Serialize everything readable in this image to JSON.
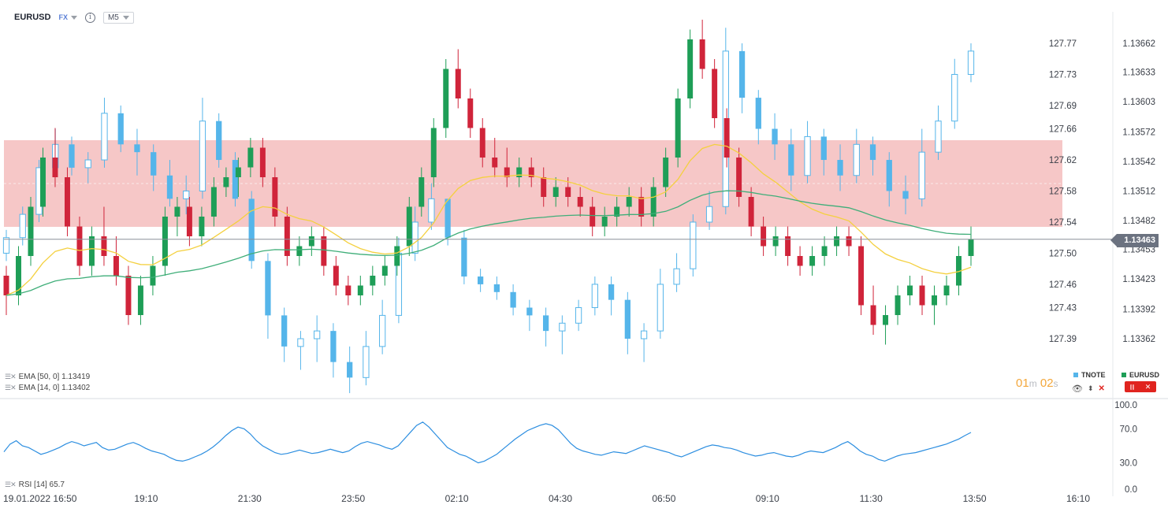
{
  "header": {
    "symbol": "EURUSD",
    "market": "FX",
    "info": "i",
    "timeframe": "M5"
  },
  "indicators": {
    "ema50": "EMA [50, 0] 1.13419",
    "ema14": "EMA [14, 0] 1.13402",
    "rsi": "RSI [14] 65.7"
  },
  "timer": {
    "min": "01",
    "min_unit": "m",
    "sec": "02",
    "sec_unit": "s"
  },
  "legend": {
    "tnote": "TNOTE",
    "eurusd": "EURUSD"
  },
  "current_price": "1.13463",
  "colors": {
    "bull": "#1e9e57",
    "bear": "#d0243a",
    "tnote": "#55b5ea",
    "ema50": "#3fae79",
    "ema14": "#f4d03f",
    "zone": "#f4b9b9",
    "rsi": "#2c8ee0"
  },
  "chart_data": [
    {
      "type": "candlestick",
      "series": [
        {
          "name": "EURUSD",
          "axis": "right"
        },
        {
          "name": "TNOTE",
          "axis": "left-inner"
        },
        {
          "name": "EMA [50, 0]",
          "last": 1.13419
        },
        {
          "name": "EMA [14, 0]",
          "last": 1.13402
        }
      ],
      "x_ticks": [
        "19.01.2022 16:50",
        "19:10",
        "21:30",
        "23:50",
        "02:10",
        "04:30",
        "06:50",
        "09:10",
        "11:30",
        "13:50",
        "16:10"
      ],
      "y_ticks_eurusd": [
        1.13662,
        1.13633,
        1.13603,
        1.13572,
        1.13542,
        1.13512,
        1.13482,
        1.13453,
        1.13423,
        1.13392,
        1.13362
      ],
      "y_ticks_tnote": [
        127.77,
        127.73,
        127.69,
        127.66,
        127.62,
        127.58,
        127.54,
        127.5,
        127.46,
        127.43,
        127.39
      ],
      "eurusd_ohlc": [
        [
          1.13426,
          1.13436,
          1.13386,
          1.13406
        ],
        [
          1.13406,
          1.13456,
          1.13396,
          1.13446
        ],
        [
          1.13446,
          1.13506,
          1.13436,
          1.13496
        ],
        [
          1.13496,
          1.13556,
          1.13486,
          1.13546
        ],
        [
          1.13546,
          1.13576,
          1.13516,
          1.13526
        ],
        [
          1.13526,
          1.13536,
          1.13466,
          1.13476
        ],
        [
          1.13476,
          1.13486,
          1.13426,
          1.13436
        ],
        [
          1.13436,
          1.13476,
          1.13426,
          1.13466
        ],
        [
          1.13466,
          1.13496,
          1.13436,
          1.13446
        ],
        [
          1.13446,
          1.13466,
          1.13416,
          1.13426
        ],
        [
          1.13426,
          1.13436,
          1.13376,
          1.13386
        ],
        [
          1.13386,
          1.13426,
          1.13376,
          1.13416
        ],
        [
          1.13416,
          1.13446,
          1.13406,
          1.13436
        ],
        [
          1.13436,
          1.13496,
          1.13426,
          1.13486
        ],
        [
          1.13486,
          1.13506,
          1.13466,
          1.13496
        ],
        [
          1.13496,
          1.13506,
          1.13456,
          1.13466
        ],
        [
          1.13466,
          1.13496,
          1.13456,
          1.13486
        ],
        [
          1.13486,
          1.13526,
          1.13476,
          1.13516
        ],
        [
          1.13516,
          1.13536,
          1.13506,
          1.13526
        ],
        [
          1.13526,
          1.13546,
          1.13506,
          1.13536
        ],
        [
          1.13536,
          1.13566,
          1.13526,
          1.13556
        ],
        [
          1.13556,
          1.13566,
          1.13516,
          1.13526
        ],
        [
          1.13526,
          1.13536,
          1.13476,
          1.13486
        ],
        [
          1.13486,
          1.13496,
          1.13436,
          1.13446
        ],
        [
          1.13446,
          1.13466,
          1.13436,
          1.13456
        ],
        [
          1.13456,
          1.13476,
          1.13446,
          1.13466
        ],
        [
          1.13466,
          1.13476,
          1.13426,
          1.13436
        ],
        [
          1.13436,
          1.13446,
          1.13406,
          1.13416
        ],
        [
          1.13416,
          1.13426,
          1.13396,
          1.13406
        ],
        [
          1.13406,
          1.13426,
          1.13396,
          1.13416
        ],
        [
          1.13416,
          1.13436,
          1.13406,
          1.13426
        ],
        [
          1.13426,
          1.13446,
          1.13416,
          1.13436
        ],
        [
          1.13436,
          1.13466,
          1.13426,
          1.13456
        ],
        [
          1.13456,
          1.13506,
          1.13446,
          1.13496
        ],
        [
          1.13496,
          1.13536,
          1.13486,
          1.13526
        ],
        [
          1.13526,
          1.13586,
          1.13516,
          1.13576
        ],
        [
          1.13576,
          1.13646,
          1.13566,
          1.13636
        ],
        [
          1.13636,
          1.13656,
          1.13596,
          1.13606
        ],
        [
          1.13606,
          1.13616,
          1.13566,
          1.13576
        ],
        [
          1.13576,
          1.13586,
          1.13536,
          1.13546
        ],
        [
          1.13546,
          1.13566,
          1.13526,
          1.13536
        ],
        [
          1.13536,
          1.13556,
          1.13516,
          1.13526
        ],
        [
          1.13526,
          1.13546,
          1.13516,
          1.13536
        ],
        [
          1.13536,
          1.13546,
          1.13516,
          1.13526
        ],
        [
          1.13526,
          1.13536,
          1.13496,
          1.13506
        ],
        [
          1.13506,
          1.13526,
          1.13496,
          1.13516
        ],
        [
          1.13516,
          1.13526,
          1.13496,
          1.13506
        ],
        [
          1.13506,
          1.13516,
          1.13486,
          1.13496
        ],
        [
          1.13496,
          1.13506,
          1.13466,
          1.13476
        ],
        [
          1.13476,
          1.13496,
          1.13466,
          1.13486
        ],
        [
          1.13486,
          1.13506,
          1.13476,
          1.13496
        ],
        [
          1.13496,
          1.13516,
          1.13486,
          1.13506
        ],
        [
          1.13506,
          1.13516,
          1.13476,
          1.13486
        ],
        [
          1.13486,
          1.13526,
          1.13476,
          1.13516
        ],
        [
          1.13516,
          1.13556,
          1.13506,
          1.13546
        ],
        [
          1.13546,
          1.13616,
          1.13536,
          1.13606
        ],
        [
          1.13606,
          1.13676,
          1.13596,
          1.13666
        ],
        [
          1.13666,
          1.13686,
          1.13626,
          1.13636
        ],
        [
          1.13636,
          1.13646,
          1.13576,
          1.13586
        ],
        [
          1.13586,
          1.13596,
          1.13536,
          1.13546
        ],
        [
          1.13546,
          1.13556,
          1.13496,
          1.13506
        ],
        [
          1.13506,
          1.13516,
          1.13466,
          1.13476
        ],
        [
          1.13476,
          1.13486,
          1.13446,
          1.13456
        ],
        [
          1.13456,
          1.13476,
          1.13446,
          1.13466
        ],
        [
          1.13466,
          1.13476,
          1.13436,
          1.13446
        ],
        [
          1.13446,
          1.13456,
          1.13426,
          1.13436
        ],
        [
          1.13436,
          1.13456,
          1.13426,
          1.13446
        ],
        [
          1.13446,
          1.13466,
          1.13436,
          1.13456
        ],
        [
          1.13456,
          1.13476,
          1.13446,
          1.13466
        ],
        [
          1.13466,
          1.13476,
          1.13446,
          1.13456
        ],
        [
          1.13456,
          1.13466,
          1.13386,
          1.13396
        ],
        [
          1.13396,
          1.13416,
          1.13366,
          1.13376
        ],
        [
          1.13376,
          1.13396,
          1.13356,
          1.13386
        ],
        [
          1.13386,
          1.13416,
          1.13376,
          1.13406
        ],
        [
          1.13406,
          1.13426,
          1.13396,
          1.13416
        ],
        [
          1.13416,
          1.13426,
          1.13386,
          1.13396
        ],
        [
          1.13396,
          1.13416,
          1.13376,
          1.13406
        ],
        [
          1.13406,
          1.13426,
          1.13396,
          1.13416
        ],
        [
          1.13416,
          1.13456,
          1.13406,
          1.13446
        ],
        [
          1.13446,
          1.13476,
          1.13436,
          1.13463
        ]
      ],
      "tnote_ohlc": [
        [
          127.5,
          127.53,
          127.49,
          127.52
        ],
        [
          127.52,
          127.56,
          127.51,
          127.55
        ],
        [
          127.55,
          127.62,
          127.54,
          127.61
        ],
        [
          127.61,
          127.66,
          127.6,
          127.64
        ],
        [
          127.64,
          127.65,
          127.6,
          127.61
        ],
        [
          127.61,
          127.63,
          127.59,
          127.62
        ],
        [
          127.62,
          127.7,
          127.61,
          127.68
        ],
        [
          127.68,
          127.69,
          127.63,
          127.64
        ],
        [
          127.64,
          127.66,
          127.6,
          127.63
        ],
        [
          127.63,
          127.64,
          127.58,
          127.6
        ],
        [
          127.6,
          127.62,
          127.56,
          127.57
        ],
        [
          127.57,
          127.6,
          127.55,
          127.58
        ],
        [
          127.58,
          127.7,
          127.57,
          127.67
        ],
        [
          127.67,
          127.68,
          127.61,
          127.62
        ],
        [
          127.62,
          127.63,
          127.56,
          127.57
        ],
        [
          127.57,
          127.58,
          127.48,
          127.49
        ],
        [
          127.49,
          127.5,
          127.39,
          127.42
        ],
        [
          127.42,
          127.43,
          127.36,
          127.38
        ],
        [
          127.38,
          127.4,
          127.35,
          127.39
        ],
        [
          127.39,
          127.42,
          127.36,
          127.4
        ],
        [
          127.4,
          127.41,
          127.34,
          127.36
        ],
        [
          127.36,
          127.38,
          127.32,
          127.34
        ],
        [
          127.34,
          127.4,
          127.33,
          127.38
        ],
        [
          127.38,
          127.44,
          127.37,
          127.42
        ],
        [
          127.42,
          127.52,
          127.41,
          127.5
        ],
        [
          127.5,
          127.56,
          127.49,
          127.54
        ],
        [
          127.54,
          127.59,
          127.53,
          127.57
        ],
        [
          127.57,
          127.56,
          127.51,
          127.52
        ],
        [
          127.52,
          127.53,
          127.46,
          127.47
        ],
        [
          127.47,
          127.48,
          127.45,
          127.46
        ],
        [
          127.46,
          127.47,
          127.44,
          127.45
        ],
        [
          127.45,
          127.46,
          127.42,
          127.43
        ],
        [
          127.43,
          127.44,
          127.4,
          127.42
        ],
        [
          127.42,
          127.43,
          127.38,
          127.4
        ],
        [
          127.4,
          127.42,
          127.37,
          127.41
        ],
        [
          127.41,
          127.44,
          127.4,
          127.43
        ],
        [
          127.43,
          127.47,
          127.42,
          127.46
        ],
        [
          127.46,
          127.47,
          127.42,
          127.44
        ],
        [
          127.44,
          127.45,
          127.37,
          127.39
        ],
        [
          127.39,
          127.41,
          127.36,
          127.4
        ],
        [
          127.4,
          127.48,
          127.39,
          127.46
        ],
        [
          127.46,
          127.5,
          127.45,
          127.48
        ],
        [
          127.48,
          127.55,
          127.47,
          127.54
        ],
        [
          127.54,
          127.58,
          127.53,
          127.56
        ],
        [
          127.56,
          127.79,
          127.55,
          127.76
        ],
        [
          127.76,
          127.77,
          127.68,
          127.7
        ],
        [
          127.7,
          127.71,
          127.64,
          127.66
        ],
        [
          127.66,
          127.68,
          127.62,
          127.64
        ],
        [
          127.64,
          127.66,
          127.58,
          127.6
        ],
        [
          127.6,
          127.67,
          127.59,
          127.65
        ],
        [
          127.65,
          127.66,
          127.6,
          127.62
        ],
        [
          127.62,
          127.64,
          127.58,
          127.6
        ],
        [
          127.6,
          127.66,
          127.59,
          127.64
        ],
        [
          127.64,
          127.65,
          127.6,
          127.62
        ],
        [
          127.62,
          127.63,
          127.56,
          127.58
        ],
        [
          127.58,
          127.6,
          127.55,
          127.57
        ],
        [
          127.57,
          127.66,
          127.56,
          127.63
        ],
        [
          127.63,
          127.69,
          127.62,
          127.67
        ],
        [
          127.67,
          127.75,
          127.66,
          127.73
        ],
        [
          127.73,
          127.77,
          127.72,
          127.76
        ]
      ]
    },
    {
      "type": "line",
      "title": "RSI [14] 65.7",
      "ylim": [
        0,
        100
      ],
      "y_ticks": [
        "100.0",
        "70.0",
        "30.0",
        "0.0"
      ],
      "series": [
        {
          "name": "RSI [14]",
          "values": [
            43,
            52,
            56,
            50,
            48,
            44,
            40,
            42,
            45,
            48,
            52,
            55,
            53,
            50,
            52,
            54,
            48,
            45,
            46,
            49,
            52,
            54,
            51,
            47,
            44,
            42,
            40,
            36,
            33,
            32,
            34,
            37,
            40,
            44,
            49,
            55,
            62,
            68,
            72,
            70,
            64,
            56,
            50,
            46,
            42,
            40,
            41,
            43,
            45,
            43,
            41,
            42,
            44,
            46,
            44,
            42,
            44,
            49,
            53,
            55,
            53,
            51,
            48,
            46,
            50,
            58,
            66,
            74,
            78,
            72,
            64,
            56,
            48,
            44,
            40,
            38,
            34,
            30,
            32,
            36,
            40,
            46,
            52,
            58,
            63,
            68,
            71,
            74,
            76,
            74,
            69,
            61,
            53,
            47,
            44,
            42,
            40,
            39,
            41,
            43,
            42,
            41,
            44,
            47,
            50,
            48,
            46,
            44,
            42,
            39,
            37,
            40,
            43,
            46,
            49,
            51,
            50,
            48,
            47,
            45,
            42,
            40,
            38,
            39,
            41,
            42,
            40,
            38,
            37,
            39,
            42,
            44,
            43,
            42,
            45,
            48,
            52,
            55,
            50,
            44,
            40,
            38,
            34,
            32,
            35,
            38,
            40,
            41,
            42,
            44,
            46,
            48,
            50,
            52,
            55,
            58,
            62,
            65.7
          ]
        }
      ]
    }
  ]
}
